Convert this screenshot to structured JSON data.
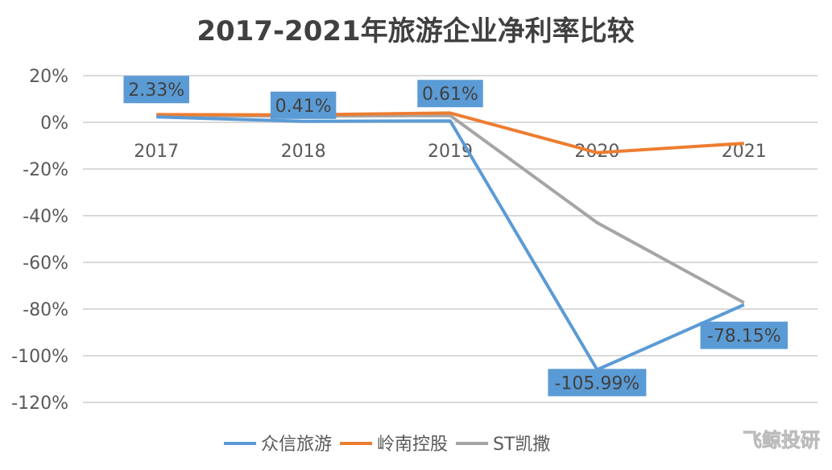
{
  "chart_data": {
    "type": "line",
    "title": "2017-2021年旅游企业净利率比较",
    "categories": [
      "2017",
      "2018",
      "2019",
      "2020",
      "2021"
    ],
    "ylim": [
      -120,
      20
    ],
    "yticks": [
      20,
      0,
      -20,
      -40,
      -60,
      -80,
      -100,
      -120
    ],
    "ytick_labels": [
      "20%",
      "0%",
      "-20%",
      "-40%",
      "-60%",
      "-80%",
      "-100%",
      "-120%"
    ],
    "grid": true,
    "legend_position": "bottom",
    "series": [
      {
        "name": "众信旅游",
        "color": "#5B9BD5",
        "values": [
          2.33,
          0.41,
          0.61,
          -105.99,
          -78.15
        ],
        "data_labels": [
          "2.33%",
          "0.41%",
          "0.61%",
          "-105.99%",
          "-78.15%"
        ]
      },
      {
        "name": "岭南控股",
        "color": "#ED7D31",
        "values": [
          3.3,
          3.2,
          4.0,
          -13.0,
          -9.0
        ]
      },
      {
        "name": "ST凯撒",
        "color": "#A5A5A5",
        "values": [
          2.9,
          2.7,
          2.9,
          -43.0,
          -77.3
        ]
      }
    ]
  },
  "watermark": "飞鲸投研"
}
